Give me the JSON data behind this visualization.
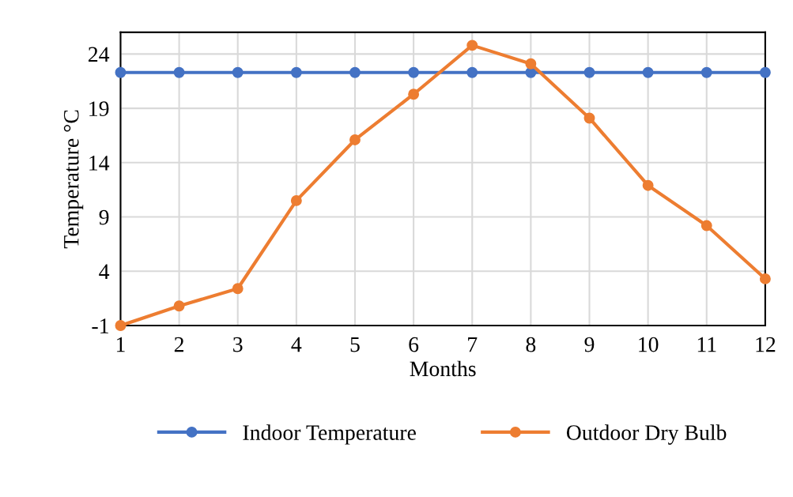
{
  "chart_data": {
    "type": "line",
    "xlabel": "Months",
    "ylabel": "Temperature °C",
    "x": [
      1,
      2,
      3,
      4,
      5,
      6,
      7,
      8,
      9,
      10,
      11,
      12
    ],
    "series": [
      {
        "name": "Indoor Temperature",
        "color": "#4472c4",
        "values": [
          22.3,
          22.3,
          22.3,
          22.3,
          22.3,
          22.3,
          22.3,
          22.3,
          22.3,
          22.3,
          22.3,
          22.3
        ]
      },
      {
        "name": "Outdoor Dry Bulb",
        "color": "#ed7d31",
        "values": [
          -1,
          0.8,
          2.4,
          10.5,
          16.1,
          20.3,
          24.8,
          23.1,
          18.1,
          11.9,
          8.2,
          3.3
        ]
      }
    ],
    "xlim": [
      1,
      12
    ],
    "xticks": [
      1,
      2,
      3,
      4,
      5,
      6,
      7,
      8,
      9,
      10,
      11,
      12
    ],
    "ylim": [
      -1,
      26
    ],
    "yticks": [
      -1,
      4,
      9,
      14,
      19,
      24
    ],
    "grid": true,
    "legend": "bottom",
    "marker": "circle",
    "line_style": "solid"
  }
}
